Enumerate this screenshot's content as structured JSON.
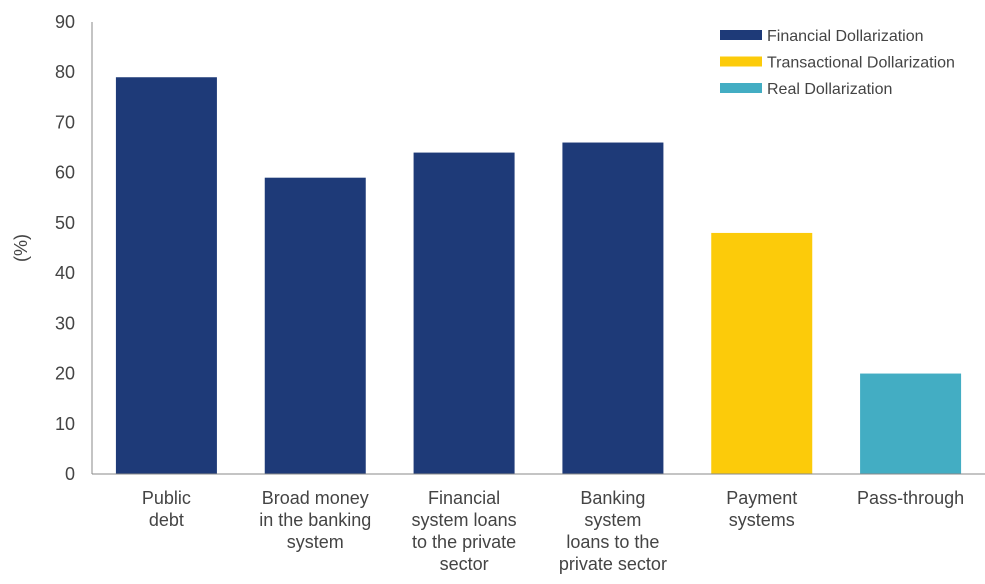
{
  "chart_data": {
    "type": "bar",
    "title": "",
    "xlabel": "",
    "ylabel": "(%)",
    "ylim": [
      0,
      90
    ],
    "yticks": [
      0,
      10,
      20,
      30,
      40,
      50,
      60,
      70,
      80,
      90
    ],
    "grid": false,
    "legend_position": "top-right",
    "categories": [
      [
        "Public",
        "debt"
      ],
      [
        "Broad money",
        "in the banking",
        "system"
      ],
      [
        "Financial",
        "system loans",
        "to the private",
        "sector"
      ],
      [
        "Banking",
        "system",
        "loans to the",
        "private sector"
      ],
      [
        "Payment",
        "systems"
      ],
      [
        "Pass-through"
      ]
    ],
    "values": [
      79,
      59,
      64,
      66,
      48,
      20
    ],
    "bar_groups": [
      "Financial Dollarization",
      "Financial Dollarization",
      "Financial Dollarization",
      "Financial Dollarization",
      "Transactional Dollarization",
      "Real Dollarization"
    ],
    "legend": [
      {
        "name": "Financial Dollarization",
        "color": "#1e3a78"
      },
      {
        "name": "Transactional Dollarization",
        "color": "#fccb0a"
      },
      {
        "name": "Real Dollarization",
        "color": "#43adc3"
      }
    ]
  }
}
